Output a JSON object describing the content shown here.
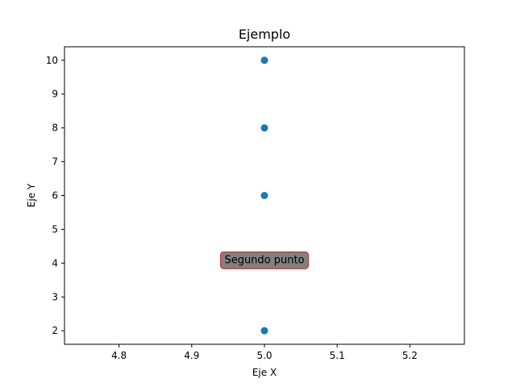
{
  "chart_data": {
    "type": "scatter",
    "title": "Ejemplo",
    "xlabel": "Eje X",
    "ylabel": "Eje Y",
    "xlim": [
      4.725,
      5.275
    ],
    "ylim": [
      1.6,
      10.4
    ],
    "xticks": [
      4.8,
      4.9,
      5.0,
      5.1,
      5.2
    ],
    "xtick_labels": [
      "4.8",
      "4.9",
      "5.0",
      "5.1",
      "5.2"
    ],
    "yticks": [
      2,
      3,
      4,
      5,
      6,
      7,
      8,
      9,
      10
    ],
    "ytick_labels": [
      "2",
      "3",
      "4",
      "5",
      "6",
      "7",
      "8",
      "9",
      "10"
    ],
    "grid": false,
    "series": [
      {
        "x": [
          5,
          5,
          5,
          5,
          5
        ],
        "y": [
          2,
          4,
          6,
          8,
          10
        ],
        "color": "#1f77b4"
      }
    ],
    "annotations": [
      {
        "text": "Segundo punto",
        "x": 5,
        "y": 4,
        "box_facecolor": "#808080",
        "box_edgecolor": "#d62728"
      }
    ]
  }
}
